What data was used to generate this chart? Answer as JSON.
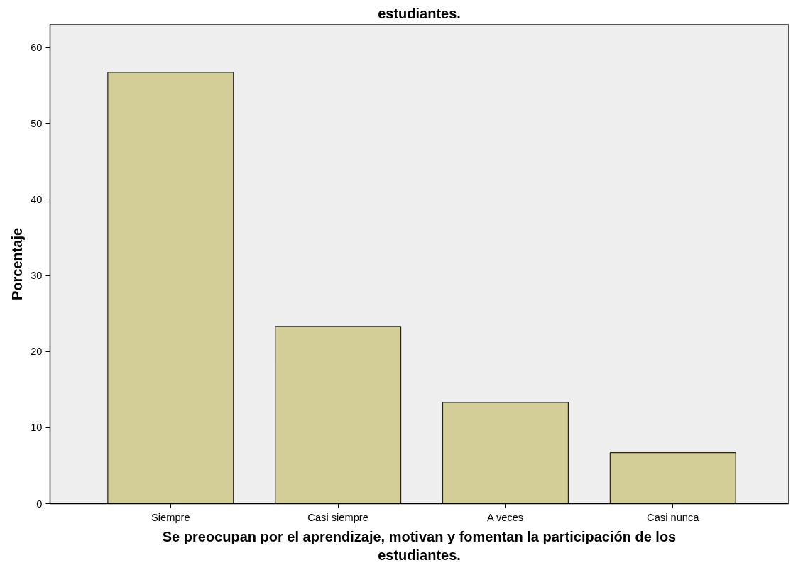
{
  "chart_data": {
    "type": "bar",
    "title": "estudiantes.",
    "xlabel": "Se preocupan por el aprendizaje, motivan y fomentan la participación de los estudiantes.",
    "ylabel": "Porcentaje",
    "categories": [
      "Siempre",
      "Casi siempre",
      "A veces",
      "Casi nunca"
    ],
    "values": [
      56.7,
      23.3,
      13.3,
      6.7
    ],
    "color": "#d3ce97",
    "ylim": [
      0,
      63
    ],
    "yticks": [
      0,
      10,
      20,
      30,
      40,
      50,
      60
    ],
    "grid": false
  }
}
